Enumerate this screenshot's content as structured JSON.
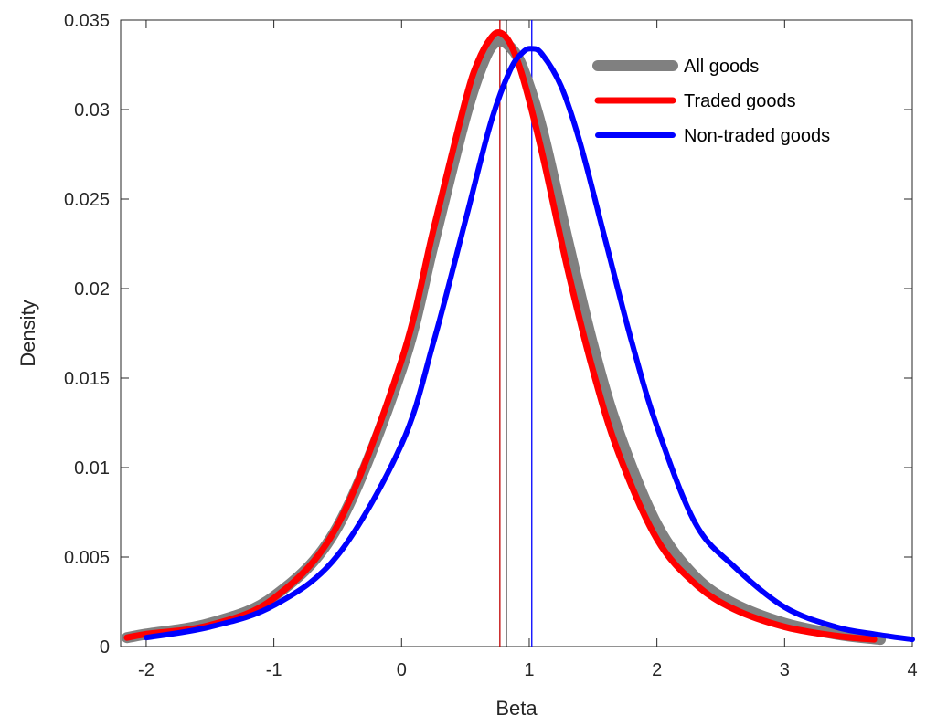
{
  "chart_data": {
    "type": "line",
    "title": "",
    "xlabel": "Beta",
    "ylabel": "Density",
    "xlim": [
      -2.2,
      4
    ],
    "ylim": [
      0,
      0.035
    ],
    "x_ticks": [
      -2,
      -1,
      0,
      1,
      2,
      3,
      4
    ],
    "x_tick_labels": [
      "-2",
      "-1",
      "0",
      "1",
      "2",
      "3",
      "4"
    ],
    "y_ticks": [
      0,
      0.005,
      0.01,
      0.015,
      0.02,
      0.025,
      0.03,
      0.035
    ],
    "y_tick_labels": [
      "0",
      "0.005",
      "0.01",
      "0.015",
      "0.02",
      "0.025",
      "0.03",
      "0.035"
    ],
    "grid": false,
    "legend_position": "top-right",
    "series": [
      {
        "name": "All goods",
        "color": "#808080",
        "mean_line_color": "#000000",
        "mean": 0.82,
        "x": [
          -2.15,
          -2.0,
          -1.5,
          -1.0,
          -0.5,
          0.0,
          0.25,
          0.5,
          0.65,
          0.75,
          0.85,
          0.95,
          1.1,
          1.3,
          1.5,
          1.7,
          2.0,
          2.3,
          2.6,
          3.0,
          3.4,
          3.75
        ],
        "y": [
          0.0005,
          0.0007,
          0.0013,
          0.0028,
          0.0067,
          0.0155,
          0.0225,
          0.0296,
          0.0328,
          0.0338,
          0.0335,
          0.0323,
          0.0289,
          0.0227,
          0.0168,
          0.012,
          0.0068,
          0.0039,
          0.0024,
          0.0013,
          0.0007,
          0.0004
        ]
      },
      {
        "name": "Traded goods",
        "color": "#ff0000",
        "mean_line_color": "#c00000",
        "mean": 0.77,
        "x": [
          -2.15,
          -2.0,
          -1.5,
          -1.0,
          -0.5,
          0.0,
          0.25,
          0.5,
          0.6,
          0.7,
          0.77,
          0.85,
          0.95,
          1.1,
          1.3,
          1.5,
          1.7,
          2.0,
          2.3,
          2.6,
          3.0,
          3.4,
          3.7
        ],
        "y": [
          0.0005,
          0.0007,
          0.0012,
          0.0027,
          0.0068,
          0.016,
          0.0233,
          0.0305,
          0.0327,
          0.034,
          0.0343,
          0.0337,
          0.0318,
          0.0276,
          0.0211,
          0.0154,
          0.0108,
          0.006,
          0.0035,
          0.0021,
          0.0011,
          0.0006,
          0.0004
        ]
      },
      {
        "name": "Non-traded goods",
        "color": "#0000ff",
        "mean_line_color": "#0000ff",
        "mean": 1.02,
        "x": [
          -2.0,
          -1.5,
          -1.0,
          -0.5,
          0.0,
          0.25,
          0.5,
          0.7,
          0.85,
          0.95,
          1.02,
          1.1,
          1.25,
          1.4,
          1.6,
          1.8,
          2.0,
          2.3,
          2.6,
          3.0,
          3.4,
          3.7,
          4.0
        ],
        "y": [
          0.0005,
          0.0011,
          0.0023,
          0.0051,
          0.0113,
          0.017,
          0.0238,
          0.0293,
          0.0322,
          0.0332,
          0.0334,
          0.0331,
          0.0313,
          0.0281,
          0.0226,
          0.0171,
          0.0123,
          0.0069,
          0.0045,
          0.0022,
          0.0011,
          0.0007,
          0.0004
        ]
      }
    ]
  }
}
